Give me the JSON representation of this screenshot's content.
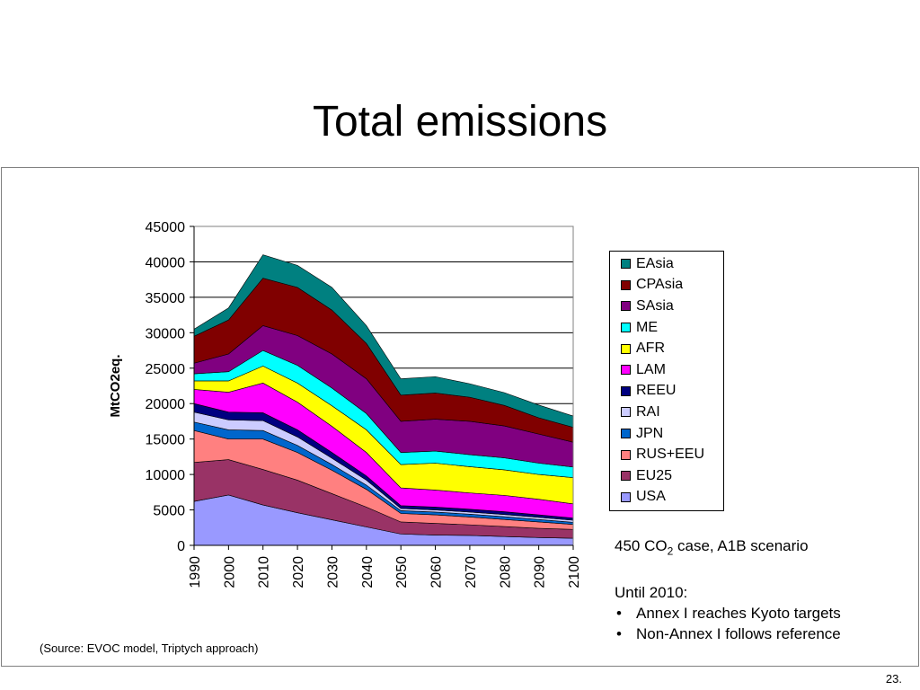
{
  "slide": {
    "title": "Total emissions",
    "page_number": "23.",
    "source": "(Source: EVOC model, Triptych approach)"
  },
  "notes": {
    "scenario_prefix": "450 CO",
    "scenario_sub": "2",
    "scenario_suffix": " case, A1B scenario",
    "heading": "Until 2010:",
    "bullets": [
      "Annex I reaches Kyoto targets",
      "Non-Annex I follows reference"
    ]
  },
  "chart_data": {
    "type": "area",
    "stacked": true,
    "ylabel": "MtCO2eq.",
    "xlabel": "",
    "ylim": [
      0,
      45000
    ],
    "yticks": [
      0,
      5000,
      10000,
      15000,
      20000,
      25000,
      30000,
      35000,
      40000,
      45000
    ],
    "grid": "horizontal",
    "legend_position": "right",
    "categories": [
      "1990",
      "2000",
      "2010",
      "2020",
      "2030",
      "2040",
      "2050",
      "2060",
      "2070",
      "2080",
      "2090",
      "2100"
    ],
    "series": [
      {
        "name": "USA",
        "color": "#9999ff",
        "values": [
          6200,
          7100,
          5700,
          4600,
          3600,
          2600,
          1600,
          1450,
          1400,
          1250,
          1100,
          1000
        ]
      },
      {
        "name": "EU25",
        "color": "#993366",
        "values": [
          5500,
          5000,
          5000,
          4600,
          3700,
          2800,
          1700,
          1650,
          1500,
          1400,
          1300,
          1250
        ]
      },
      {
        "name": "RUS+EEU",
        "color": "#ff8080",
        "values": [
          4500,
          2900,
          4300,
          3900,
          3300,
          2500,
          1200,
          1200,
          1100,
          1000,
          900,
          700
        ]
      },
      {
        "name": "JPN",
        "color": "#0066cc",
        "values": [
          1200,
          1300,
          1200,
          1000,
          800,
          600,
          400,
          400,
          400,
          400,
          350,
          300
        ]
      },
      {
        "name": "RAI",
        "color": "#ccccff",
        "values": [
          1400,
          1400,
          1400,
          1200,
          900,
          700,
          300,
          300,
          300,
          300,
          300,
          300
        ]
      },
      {
        "name": "REEU",
        "color": "#000080",
        "values": [
          1200,
          1100,
          1100,
          1000,
          800,
          600,
          400,
          400,
          400,
          400,
          350,
          300
        ]
      },
      {
        "name": "LAM",
        "color": "#ff00ff",
        "values": [
          2000,
          2800,
          4200,
          3900,
          3700,
          3300,
          2500,
          2400,
          2300,
          2300,
          2200,
          2000
        ]
      },
      {
        "name": "AFR",
        "color": "#ffff00",
        "values": [
          1200,
          1600,
          2400,
          2700,
          2900,
          3200,
          3300,
          3800,
          3700,
          3600,
          3500,
          3700
        ]
      },
      {
        "name": "ME",
        "color": "#00ffff",
        "values": [
          1000,
          1300,
          2200,
          2500,
          2500,
          2300,
          1700,
          1700,
          1700,
          1700,
          1600,
          1500
        ]
      },
      {
        "name": "SAsia",
        "color": "#800080",
        "values": [
          1500,
          2500,
          3500,
          4200,
          4800,
          4900,
          4400,
          4500,
          4700,
          4500,
          4100,
          3500
        ]
      },
      {
        "name": "CPAsia",
        "color": "#800000",
        "values": [
          3800,
          4800,
          6700,
          6800,
          6200,
          5000,
          3700,
          3700,
          3400,
          2900,
          2300,
          2100
        ]
      },
      {
        "name": "EAsia",
        "color": "#008080",
        "values": [
          1000,
          1700,
          3300,
          3100,
          3200,
          2500,
          2300,
          2300,
          1900,
          1800,
          1800,
          1600
        ]
      }
    ]
  }
}
